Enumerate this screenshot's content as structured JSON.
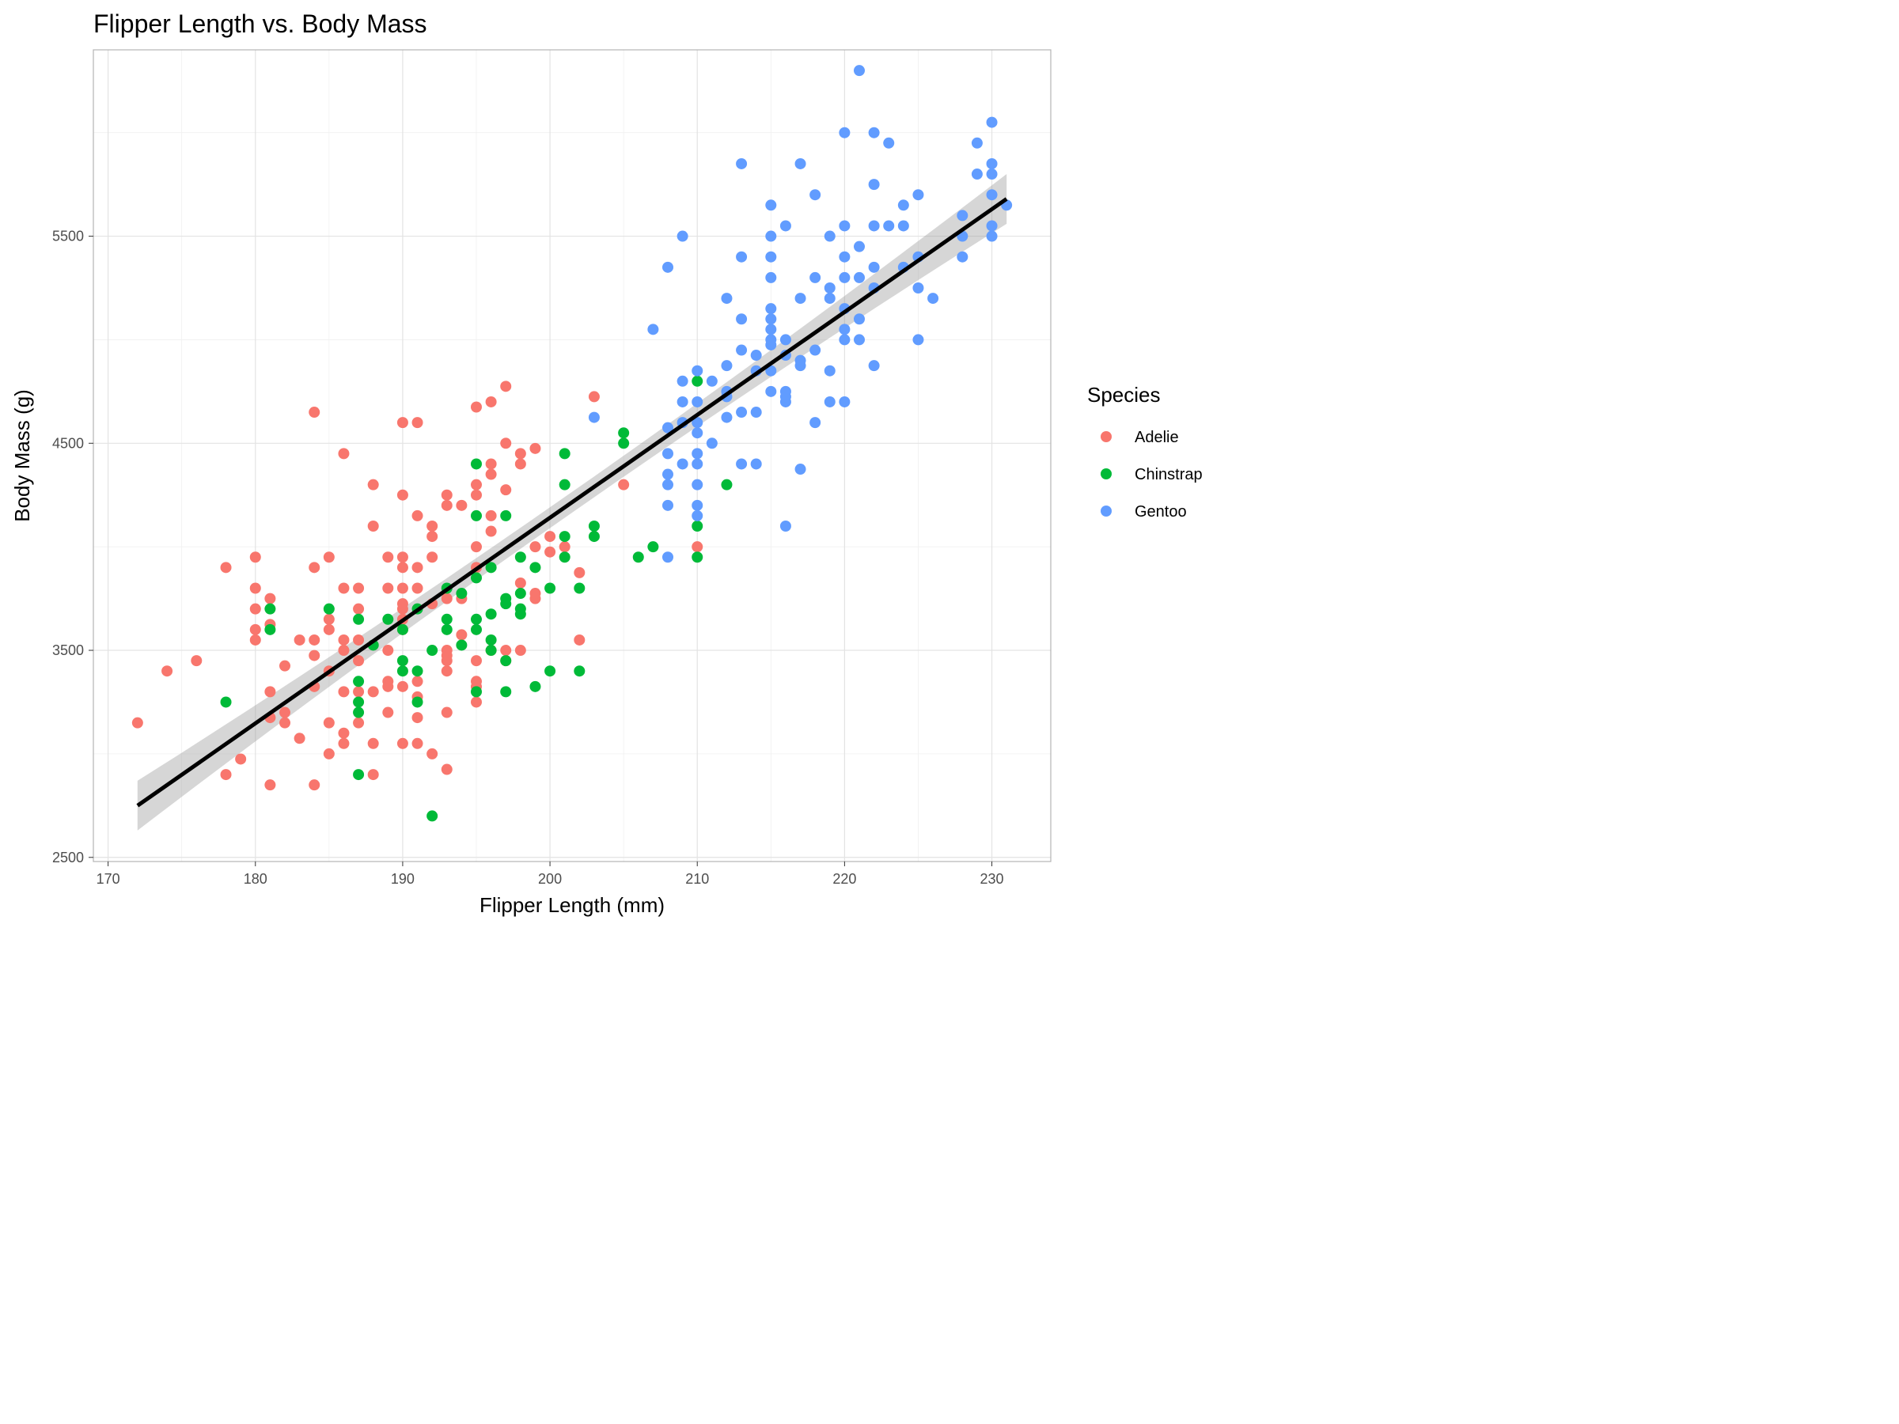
{
  "chart_data": {
    "type": "scatter",
    "title": "Flipper Length vs. Body Mass",
    "xlabel": "Flipper Length (mm)",
    "ylabel": "Body Mass (g)",
    "xlim": [
      169,
      234
    ],
    "ylim": [
      2480,
      6400
    ],
    "x_ticks": [
      170,
      180,
      190,
      200,
      210,
      220,
      230
    ],
    "y_ticks": [
      2500,
      3500,
      4500,
      5500
    ],
    "grid": true,
    "legend": {
      "title": "Species",
      "position": "right"
    },
    "trend_line": {
      "x": [
        172,
        231
      ],
      "y": [
        2750,
        5680
      ],
      "color": "#000000"
    },
    "series": [
      {
        "name": "Adelie",
        "color": "#F8766D",
        "points": [
          [
            172,
            3150
          ],
          [
            174,
            3400
          ],
          [
            176,
            3450
          ],
          [
            178,
            2900
          ],
          [
            178,
            3900
          ],
          [
            179,
            2975
          ],
          [
            180,
            3550
          ],
          [
            180,
            3600
          ],
          [
            180,
            3700
          ],
          [
            180,
            3800
          ],
          [
            180,
            3950
          ],
          [
            181,
            2850
          ],
          [
            181,
            3175
          ],
          [
            181,
            3300
          ],
          [
            181,
            3625
          ],
          [
            181,
            3750
          ],
          [
            182,
            3150
          ],
          [
            182,
            3200
          ],
          [
            182,
            3425
          ],
          [
            183,
            3075
          ],
          [
            183,
            3550
          ],
          [
            184,
            2850
          ],
          [
            184,
            3325
          ],
          [
            184,
            3475
          ],
          [
            184,
            3550
          ],
          [
            184,
            3900
          ],
          [
            184,
            4650
          ],
          [
            185,
            3000
          ],
          [
            185,
            3150
          ],
          [
            185,
            3400
          ],
          [
            185,
            3600
          ],
          [
            185,
            3650
          ],
          [
            185,
            3950
          ],
          [
            186,
            3050
          ],
          [
            186,
            3100
          ],
          [
            186,
            3300
          ],
          [
            186,
            3500
          ],
          [
            186,
            3550
          ],
          [
            186,
            3800
          ],
          [
            186,
            4450
          ],
          [
            187,
            3150
          ],
          [
            187,
            3300
          ],
          [
            187,
            3450
          ],
          [
            187,
            3550
          ],
          [
            187,
            3700
          ],
          [
            187,
            3800
          ],
          [
            188,
            2900
          ],
          [
            188,
            3050
          ],
          [
            188,
            3300
          ],
          [
            188,
            4100
          ],
          [
            188,
            4300
          ],
          [
            189,
            3200
          ],
          [
            189,
            3325
          ],
          [
            189,
            3350
          ],
          [
            189,
            3500
          ],
          [
            189,
            3800
          ],
          [
            189,
            3950
          ],
          [
            190,
            3050
          ],
          [
            190,
            3325
          ],
          [
            190,
            3600
          ],
          [
            190,
            3650
          ],
          [
            190,
            3700
          ],
          [
            190,
            3725
          ],
          [
            190,
            3800
          ],
          [
            190,
            3900
          ],
          [
            190,
            3950
          ],
          [
            190,
            4250
          ],
          [
            190,
            4600
          ],
          [
            191,
            3050
          ],
          [
            191,
            3175
          ],
          [
            191,
            3275
          ],
          [
            191,
            3350
          ],
          [
            191,
            3800
          ],
          [
            191,
            3900
          ],
          [
            191,
            4150
          ],
          [
            191,
            4600
          ],
          [
            192,
            3000
          ],
          [
            192,
            3725
          ],
          [
            192,
            3950
          ],
          [
            192,
            4050
          ],
          [
            192,
            4100
          ],
          [
            193,
            2925
          ],
          [
            193,
            3200
          ],
          [
            193,
            3400
          ],
          [
            193,
            3450
          ],
          [
            193,
            3475
          ],
          [
            193,
            3500
          ],
          [
            193,
            3750
          ],
          [
            193,
            4200
          ],
          [
            193,
            4250
          ],
          [
            194,
            3575
          ],
          [
            194,
            3750
          ],
          [
            194,
            4200
          ],
          [
            195,
            3250
          ],
          [
            195,
            3325
          ],
          [
            195,
            3350
          ],
          [
            195,
            3450
          ],
          [
            195,
            3900
          ],
          [
            195,
            4000
          ],
          [
            195,
            4250
          ],
          [
            195,
            4300
          ],
          [
            195,
            4675
          ],
          [
            196,
            3500
          ],
          [
            196,
            4075
          ],
          [
            196,
            4150
          ],
          [
            196,
            4350
          ],
          [
            196,
            4400
          ],
          [
            196,
            4700
          ],
          [
            197,
            3450
          ],
          [
            197,
            3500
          ],
          [
            197,
            4275
          ],
          [
            197,
            4500
          ],
          [
            197,
            4775
          ],
          [
            198,
            3500
          ],
          [
            198,
            3825
          ],
          [
            198,
            4400
          ],
          [
            198,
            4450
          ],
          [
            199,
            3750
          ],
          [
            199,
            3775
          ],
          [
            199,
            4000
          ],
          [
            199,
            4475
          ],
          [
            200,
            3975
          ],
          [
            200,
            4050
          ],
          [
            201,
            4000
          ],
          [
            202,
            3550
          ],
          [
            202,
            3875
          ],
          [
            203,
            4725
          ],
          [
            205,
            4300
          ],
          [
            210,
            4000
          ]
        ]
      },
      {
        "name": "Chinstrap",
        "color": "#00BA38",
        "points": [
          [
            178,
            3250
          ],
          [
            181,
            3600
          ],
          [
            181,
            3700
          ],
          [
            185,
            3700
          ],
          [
            187,
            2900
          ],
          [
            187,
            3200
          ],
          [
            187,
            3250
          ],
          [
            187,
            3350
          ],
          [
            187,
            3650
          ],
          [
            188,
            3525
          ],
          [
            189,
            3650
          ],
          [
            190,
            3400
          ],
          [
            190,
            3450
          ],
          [
            190,
            3600
          ],
          [
            191,
            3250
          ],
          [
            191,
            3400
          ],
          [
            191,
            3700
          ],
          [
            192,
            2700
          ],
          [
            192,
            3500
          ],
          [
            193,
            3600
          ],
          [
            193,
            3650
          ],
          [
            193,
            3800
          ],
          [
            194,
            3525
          ],
          [
            194,
            3775
          ],
          [
            195,
            3300
          ],
          [
            195,
            3600
          ],
          [
            195,
            3650
          ],
          [
            195,
            3850
          ],
          [
            195,
            4150
          ],
          [
            195,
            4400
          ],
          [
            196,
            3500
          ],
          [
            196,
            3550
          ],
          [
            196,
            3675
          ],
          [
            196,
            3900
          ],
          [
            197,
            3300
          ],
          [
            197,
            3450
          ],
          [
            197,
            3725
          ],
          [
            197,
            3750
          ],
          [
            197,
            4150
          ],
          [
            198,
            3675
          ],
          [
            198,
            3700
          ],
          [
            198,
            3775
          ],
          [
            198,
            3950
          ],
          [
            199,
            3325
          ],
          [
            199,
            3900
          ],
          [
            200,
            3400
          ],
          [
            200,
            3800
          ],
          [
            201,
            3950
          ],
          [
            201,
            4050
          ],
          [
            201,
            4300
          ],
          [
            201,
            4450
          ],
          [
            202,
            3400
          ],
          [
            202,
            3800
          ],
          [
            203,
            4050
          ],
          [
            203,
            4100
          ],
          [
            205,
            4500
          ],
          [
            205,
            4550
          ],
          [
            206,
            3950
          ],
          [
            207,
            4000
          ],
          [
            210,
            3950
          ],
          [
            210,
            4100
          ],
          [
            210,
            4800
          ],
          [
            212,
            4300
          ]
        ]
      },
      {
        "name": "Gentoo",
        "color": "#619CFF",
        "points": [
          [
            203,
            4625
          ],
          [
            207,
            5050
          ],
          [
            208,
            3950
          ],
          [
            208,
            4200
          ],
          [
            208,
            4300
          ],
          [
            208,
            4350
          ],
          [
            208,
            4450
          ],
          [
            208,
            4575
          ],
          [
            208,
            5350
          ],
          [
            209,
            4400
          ],
          [
            209,
            4600
          ],
          [
            209,
            4700
          ],
          [
            209,
            4800
          ],
          [
            209,
            5500
          ],
          [
            210,
            4150
          ],
          [
            210,
            4200
          ],
          [
            210,
            4300
          ],
          [
            210,
            4400
          ],
          [
            210,
            4450
          ],
          [
            210,
            4550
          ],
          [
            210,
            4600
          ],
          [
            210,
            4700
          ],
          [
            210,
            4850
          ],
          [
            211,
            4500
          ],
          [
            211,
            4800
          ],
          [
            212,
            4625
          ],
          [
            212,
            4725
          ],
          [
            212,
            4750
          ],
          [
            212,
            4875
          ],
          [
            212,
            5200
          ],
          [
            213,
            4400
          ],
          [
            213,
            4650
          ],
          [
            213,
            4950
          ],
          [
            213,
            5100
          ],
          [
            213,
            5400
          ],
          [
            213,
            5850
          ],
          [
            214,
            4400
          ],
          [
            214,
            4650
          ],
          [
            214,
            4850
          ],
          [
            214,
            4925
          ],
          [
            215,
            4750
          ],
          [
            215,
            4850
          ],
          [
            215,
            4975
          ],
          [
            215,
            5000
          ],
          [
            215,
            5050
          ],
          [
            215,
            5100
          ],
          [
            215,
            5150
          ],
          [
            215,
            5300
          ],
          [
            215,
            5400
          ],
          [
            215,
            5500
          ],
          [
            215,
            5650
          ],
          [
            216,
            4100
          ],
          [
            216,
            4700
          ],
          [
            216,
            4725
          ],
          [
            216,
            4750
          ],
          [
            216,
            4925
          ],
          [
            216,
            5000
          ],
          [
            216,
            5550
          ],
          [
            217,
            4375
          ],
          [
            217,
            4875
          ],
          [
            217,
            4900
          ],
          [
            217,
            5200
          ],
          [
            217,
            5850
          ],
          [
            218,
            4600
          ],
          [
            218,
            4950
          ],
          [
            218,
            5300
          ],
          [
            218,
            5700
          ],
          [
            219,
            4700
          ],
          [
            219,
            4850
          ],
          [
            219,
            5200
          ],
          [
            219,
            5250
          ],
          [
            219,
            5500
          ],
          [
            220,
            4700
          ],
          [
            220,
            5000
          ],
          [
            220,
            5050
          ],
          [
            220,
            5150
          ],
          [
            220,
            5300
          ],
          [
            220,
            5400
          ],
          [
            220,
            5550
          ],
          [
            220,
            6000
          ],
          [
            221,
            5000
          ],
          [
            221,
            5100
          ],
          [
            221,
            5300
          ],
          [
            221,
            5450
          ],
          [
            221,
            6300
          ],
          [
            222,
            4875
          ],
          [
            222,
            5250
          ],
          [
            222,
            5350
          ],
          [
            222,
            5550
          ],
          [
            222,
            5750
          ],
          [
            222,
            6000
          ],
          [
            223,
            5550
          ],
          [
            223,
            5950
          ],
          [
            224,
            5350
          ],
          [
            224,
            5550
          ],
          [
            224,
            5650
          ],
          [
            225,
            5000
          ],
          [
            225,
            5250
          ],
          [
            225,
            5400
          ],
          [
            225,
            5700
          ],
          [
            226,
            5200
          ],
          [
            228,
            5400
          ],
          [
            228,
            5500
          ],
          [
            228,
            5600
          ],
          [
            229,
            5800
          ],
          [
            229,
            5950
          ],
          [
            230,
            5500
          ],
          [
            230,
            5550
          ],
          [
            230,
            5700
          ],
          [
            230,
            5800
          ],
          [
            230,
            5850
          ],
          [
            230,
            6050
          ],
          [
            231,
            5650
          ]
        ]
      }
    ]
  }
}
